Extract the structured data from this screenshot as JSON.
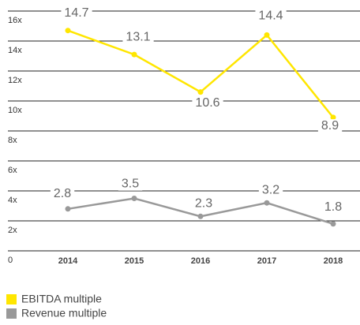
{
  "chart_data": {
    "type": "line",
    "categories": [
      "2014",
      "2015",
      "2016",
      "2017",
      "2018"
    ],
    "series": [
      {
        "name": "EBITDA multiple",
        "color": "#ffe600",
        "values": [
          14.7,
          13.1,
          10.6,
          14.4,
          8.9
        ]
      },
      {
        "name": "Revenue multiple",
        "color": "#999999",
        "values": [
          2.8,
          3.5,
          2.3,
          3.2,
          1.8
        ]
      }
    ],
    "ylim": [
      0,
      16
    ],
    "yticks": [
      0,
      {
        "value": 2,
        "label": "2x"
      },
      {
        "value": 4,
        "label": "4x"
      },
      {
        "value": 6,
        "label": "6x"
      },
      {
        "value": 8,
        "label": "8x"
      },
      {
        "value": 10,
        "label": "10x"
      },
      {
        "value": 12,
        "label": "12x"
      },
      {
        "value": 14,
        "label": "14x"
      },
      {
        "value": 16,
        "label": "16x"
      }
    ],
    "grid": true
  }
}
